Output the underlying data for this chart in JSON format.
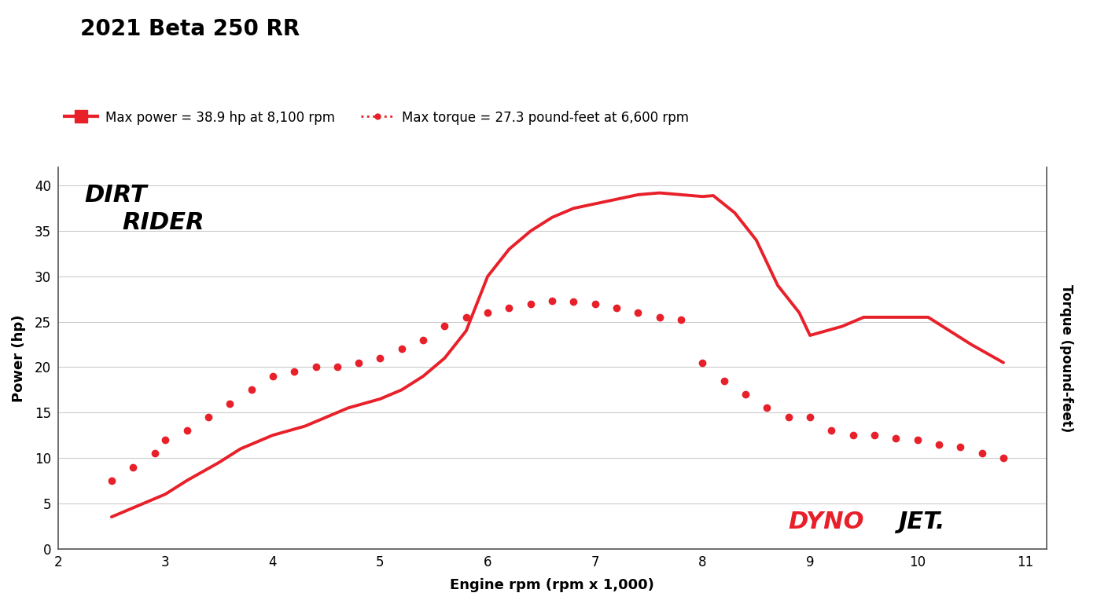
{
  "title": "2021 Beta 250 RR",
  "title_fontsize": 20,
  "legend_power_label": "Max power = 38.9 hp at 8,100 rpm",
  "legend_torque_label": "Max torque = 27.3 pound-feet at 6,600 rpm",
  "xlabel": "Engine rpm (rpm x 1,000)",
  "ylabel_left": "Power (hp)",
  "ylabel_right": "Torque (pound-feet)",
  "xlim": [
    2,
    11.2
  ],
  "ylim": [
    0,
    42
  ],
  "xticks": [
    2,
    3,
    4,
    5,
    6,
    7,
    8,
    9,
    10,
    11
  ],
  "yticks": [
    0,
    5,
    10,
    15,
    20,
    25,
    30,
    35,
    40
  ],
  "line_color": "#e8202a",
  "dot_color": "#e8202a",
  "background_color": "#ffffff",
  "grid_color": "#cccccc",
  "power_rpm": [
    2.5,
    2.7,
    2.9,
    3.0,
    3.2,
    3.5,
    3.7,
    4.0,
    4.3,
    4.5,
    4.7,
    5.0,
    5.2,
    5.4,
    5.6,
    5.8,
    6.0,
    6.2,
    6.4,
    6.6,
    6.8,
    7.0,
    7.2,
    7.4,
    7.6,
    7.8,
    8.0,
    8.1,
    8.3,
    8.5,
    8.7,
    8.9,
    9.0,
    9.3,
    9.5,
    9.7,
    10.0,
    10.1,
    10.3,
    10.5,
    10.8
  ],
  "power_hp": [
    3.5,
    4.5,
    5.5,
    6.0,
    7.5,
    9.5,
    11.0,
    12.5,
    13.5,
    14.5,
    15.5,
    16.5,
    17.5,
    19.0,
    21.0,
    24.0,
    30.0,
    33.0,
    35.0,
    36.5,
    37.5,
    38.0,
    38.5,
    39.0,
    39.2,
    39.0,
    38.8,
    38.9,
    37.0,
    34.0,
    29.0,
    26.0,
    23.5,
    24.5,
    25.5,
    25.5,
    25.5,
    25.5,
    24.0,
    22.5,
    20.5
  ],
  "torque_rpm": [
    2.5,
    2.7,
    2.9,
    3.0,
    3.2,
    3.4,
    3.6,
    3.8,
    4.0,
    4.2,
    4.4,
    4.6,
    4.8,
    5.0,
    5.2,
    5.4,
    5.6,
    5.8,
    6.0,
    6.2,
    6.4,
    6.6,
    6.8,
    7.0,
    7.2,
    7.4,
    7.6,
    7.8,
    8.0,
    8.2,
    8.4,
    8.6,
    8.8,
    9.0,
    9.2,
    9.4,
    9.6,
    9.8,
    10.0,
    10.2,
    10.4,
    10.6,
    10.8
  ],
  "torque_lbft": [
    7.5,
    9.0,
    10.5,
    12.0,
    13.0,
    14.5,
    16.0,
    17.5,
    19.0,
    19.5,
    20.0,
    20.0,
    20.5,
    21.0,
    22.0,
    23.0,
    24.5,
    25.5,
    26.0,
    26.5,
    27.0,
    27.3,
    27.2,
    27.0,
    26.5,
    26.0,
    25.5,
    25.2,
    20.5,
    18.5,
    17.0,
    15.5,
    14.5,
    14.5,
    13.0,
    12.5,
    12.5,
    12.2,
    12.0,
    11.5,
    11.2,
    10.5,
    10.0
  ],
  "dirt_x": 2.25,
  "dirt_y": 38.2,
  "rider_x": 2.6,
  "rider_y": 35.2,
  "dyno_x": 8.8,
  "dyno_y": 2.2,
  "jet_x": 9.82,
  "jet_y": 2.2
}
